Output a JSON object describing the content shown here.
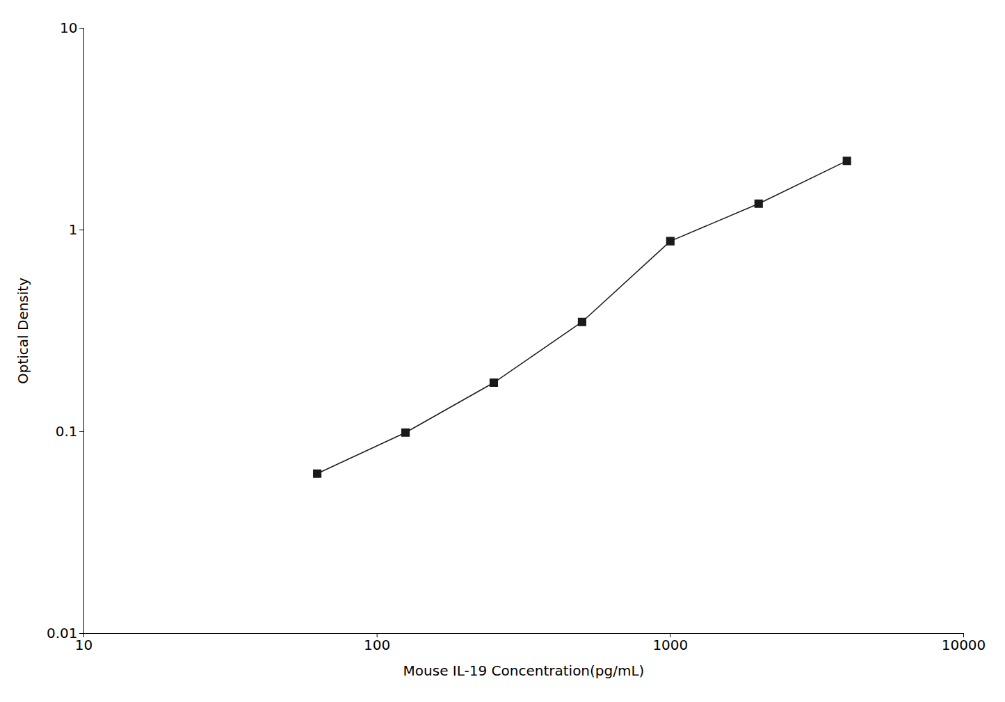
{
  "chart_data": {
    "type": "line",
    "x": [
      62.5,
      125,
      250,
      500,
      1000,
      2000,
      4000
    ],
    "values": [
      0.062,
      0.099,
      0.175,
      0.35,
      0.88,
      1.35,
      2.2
    ],
    "xlabel": "Mouse IL-19 Concentration(pg/mL)",
    "ylabel": "Optical Density",
    "xlim": [
      10,
      10000
    ],
    "ylim": [
      0.01,
      10
    ],
    "xticks": [
      10,
      100,
      1000,
      10000
    ],
    "yticks": [
      0.01,
      0.1,
      1,
      10
    ],
    "log": true,
    "grid": false,
    "color": "#1a1a1a",
    "marker": "square"
  }
}
